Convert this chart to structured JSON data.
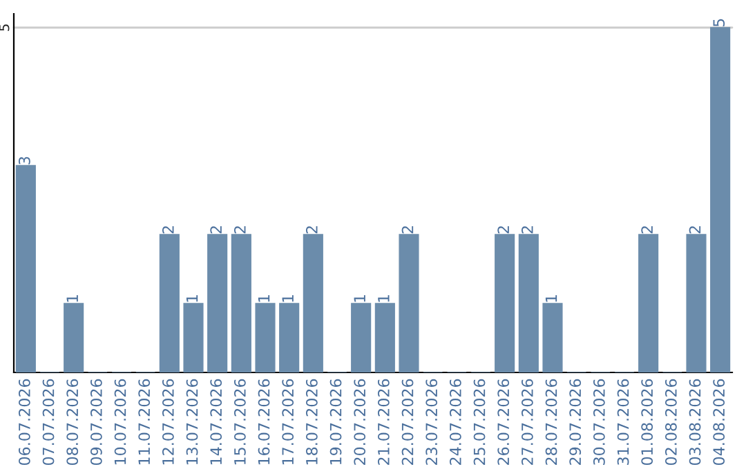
{
  "chart_data": {
    "type": "bar",
    "categories": [
      "06.07.2026",
      "07.07.2026",
      "08.07.2026",
      "09.07.2026",
      "10.07.2026",
      "11.07.2026",
      "12.07.2026",
      "13.07.2026",
      "14.07.2026",
      "15.07.2026",
      "16.07.2026",
      "17.07.2026",
      "18.07.2026",
      "19.07.2026",
      "20.07.2026",
      "21.07.2026",
      "22.07.2026",
      "23.07.2026",
      "24.07.2026",
      "25.07.2026",
      "26.07.2026",
      "27.07.2026",
      "28.07.2026",
      "29.07.2026",
      "30.07.2026",
      "31.07.2026",
      "01.08.2026",
      "02.08.2026",
      "03.08.2026",
      "04.08.2026"
    ],
    "values": [
      3,
      0,
      1,
      0,
      0,
      0,
      2,
      1,
      2,
      2,
      1,
      1,
      2,
      0,
      1,
      1,
      2,
      0,
      0,
      0,
      2,
      2,
      1,
      0,
      0,
      0,
      2,
      0,
      2,
      5
    ],
    "value_labels": [
      "3",
      null,
      "1",
      null,
      null,
      null,
      "2",
      "1",
      "2",
      "2",
      "1",
      "1",
      "2",
      null,
      "1",
      "1",
      "2",
      null,
      null,
      null,
      "2",
      "2",
      "1",
      null,
      null,
      null,
      "2",
      null,
      "2",
      "5"
    ],
    "color": "#6b8cab",
    "ylim": [
      0,
      5.2
    ],
    "yticks": [
      5
    ],
    "grid": "y"
  }
}
